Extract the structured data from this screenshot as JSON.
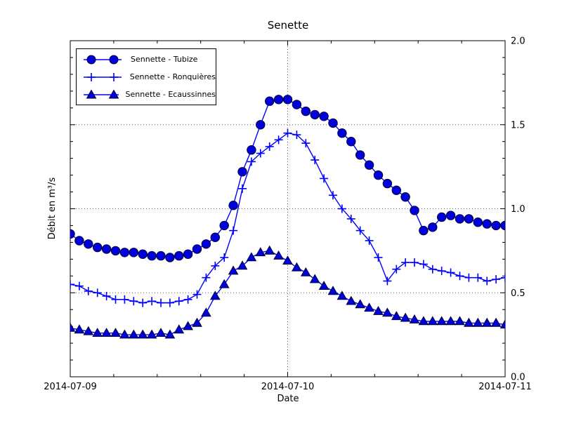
{
  "figure": {
    "background": "#ffffff"
  },
  "chart_data": {
    "type": "line",
    "title": "Senette",
    "xlabel": "Date",
    "ylabel": "Débit en m³/s",
    "x_unit": "hours from 2014-07-09 00:00",
    "x": [
      0,
      1,
      2,
      3,
      4,
      5,
      6,
      7,
      8,
      9,
      10,
      11,
      12,
      13,
      14,
      15,
      16,
      17,
      18,
      19,
      20,
      21,
      22,
      23,
      24,
      25,
      26,
      27,
      28,
      29,
      30,
      31,
      32,
      33,
      34,
      35,
      36,
      37,
      38,
      39,
      40,
      41,
      42,
      43,
      44,
      45,
      46,
      47,
      48
    ],
    "xlim": [
      0,
      48
    ],
    "ylim": [
      0.0,
      2.0
    ],
    "x_major_ticks": [
      0,
      24,
      48
    ],
    "x_tick_labels": [
      "2014-07-09",
      "2014-07-10",
      "2014-07-11"
    ],
    "x_minor_step": 4.8,
    "y_major_ticks": [
      0.0,
      0.5,
      1.0,
      1.5,
      2.0
    ],
    "y_tick_labels": [
      "0.0",
      "0.5",
      "1.0",
      "1.5",
      "2.0"
    ],
    "y_minor_step": 0.1,
    "grid": {
      "horizontal_at": [
        0.5,
        1.0,
        1.5
      ],
      "vertical_at": [
        24
      ],
      "style": "dotted"
    },
    "legend": {
      "position": "upper-left"
    },
    "series": [
      {
        "name": "Sennette - Tubize",
        "marker": "circle",
        "values": [
          0.85,
          0.81,
          0.79,
          0.77,
          0.76,
          0.75,
          0.74,
          0.74,
          0.73,
          0.72,
          0.72,
          0.71,
          0.72,
          0.73,
          0.76,
          0.79,
          0.83,
          0.9,
          1.02,
          1.22,
          1.35,
          1.5,
          1.64,
          1.65,
          1.65,
          1.62,
          1.58,
          1.56,
          1.55,
          1.51,
          1.45,
          1.4,
          1.32,
          1.26,
          1.2,
          1.15,
          1.11,
          1.07,
          0.99,
          0.87,
          0.89,
          0.95,
          0.96,
          0.94,
          0.94,
          0.92,
          0.91,
          0.9,
          0.9
        ]
      },
      {
        "name": "Sennette - Ronquières",
        "marker": "plus",
        "values": [
          0.55,
          0.54,
          0.51,
          0.5,
          0.48,
          0.46,
          0.46,
          0.45,
          0.44,
          0.45,
          0.44,
          0.44,
          0.45,
          0.46,
          0.49,
          0.59,
          0.66,
          0.71,
          0.87,
          1.12,
          1.28,
          1.33,
          1.37,
          1.41,
          1.45,
          1.44,
          1.39,
          1.29,
          1.18,
          1.08,
          1.0,
          0.94,
          0.87,
          0.81,
          0.71,
          0.57,
          0.64,
          0.68,
          0.68,
          0.67,
          0.64,
          0.63,
          0.62,
          0.6,
          0.59,
          0.59,
          0.57,
          0.58,
          0.59
        ]
      },
      {
        "name": "Sennette - Ecaussinnes",
        "marker": "triangle",
        "values": [
          0.29,
          0.28,
          0.27,
          0.26,
          0.26,
          0.26,
          0.25,
          0.25,
          0.25,
          0.25,
          0.26,
          0.25,
          0.28,
          0.3,
          0.32,
          0.38,
          0.48,
          0.55,
          0.63,
          0.66,
          0.71,
          0.74,
          0.75,
          0.72,
          0.69,
          0.65,
          0.62,
          0.58,
          0.54,
          0.51,
          0.48,
          0.45,
          0.43,
          0.41,
          0.39,
          0.38,
          0.36,
          0.35,
          0.34,
          0.33,
          0.33,
          0.33,
          0.33,
          0.33,
          0.32,
          0.32,
          0.32,
          0.32,
          0.31
        ]
      }
    ],
    "style": {
      "line_color": "#0000ff",
      "marker_face": "#0000dd",
      "marker_edge": "#000033",
      "grid_color": "#666666",
      "axis_color": "#000000",
      "tick_label_color": "#000000"
    }
  }
}
